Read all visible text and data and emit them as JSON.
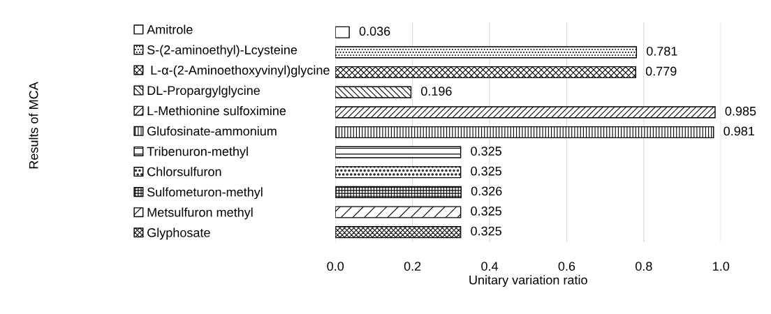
{
  "chart_data": {
    "type": "bar",
    "orientation": "horizontal",
    "xlabel": "Unitary variation ratio",
    "annotations": [
      "Results of MCA"
    ],
    "categories": [
      null,
      null,
      null,
      null,
      null,
      null,
      null,
      null,
      null,
      null,
      null
    ],
    "series": [
      {
        "name": "Amitrole",
        "color": "#000000",
        "values": [
          0.036,
          null,
          null,
          null,
          null,
          null,
          null,
          null,
          null,
          null,
          null
        ]
      },
      {
        "name": "S-(2-aminoethyl)-Lcysteine",
        "color": "#000000",
        "values": [
          null,
          0.781,
          null,
          null,
          null,
          null,
          null,
          null,
          null,
          null,
          null
        ]
      },
      {
        "name": " L-α-(2-Aminoethoxyvinyl)glycine",
        "color": "#000000",
        "values": [
          null,
          null,
          0.779,
          null,
          null,
          null,
          null,
          null,
          null,
          null,
          null
        ]
      },
      {
        "name": "DL-Propargylglycine",
        "color": "#000000",
        "values": [
          null,
          null,
          null,
          0.196,
          null,
          null,
          null,
          null,
          null,
          null,
          null
        ]
      },
      {
        "name": "L-Methionine sulfoximine",
        "color": "#000000",
        "values": [
          null,
          null,
          null,
          null,
          0.985,
          null,
          null,
          null,
          null,
          null,
          null
        ]
      },
      {
        "name": "Glufosinate-ammonium",
        "color": "#000000",
        "values": [
          null,
          null,
          null,
          null,
          null,
          0.981,
          null,
          null,
          null,
          null,
          null
        ]
      },
      {
        "name": "Tribenuron-methyl",
        "color": "#000000",
        "values": [
          null,
          null,
          null,
          null,
          null,
          null,
          0.325,
          null,
          null,
          null,
          null
        ]
      },
      {
        "name": "Chlorsulfuron",
        "color": "#000000",
        "values": [
          null,
          null,
          null,
          null,
          null,
          null,
          null,
          0.325,
          null,
          null,
          null
        ]
      },
      {
        "name": "Sulfometuron-methyl",
        "color": "#000000",
        "values": [
          null,
          null,
          null,
          null,
          null,
          null,
          null,
          null,
          0.326,
          null,
          null
        ]
      },
      {
        "name": "Metsulfuron methyl",
        "color": "#000000",
        "values": [
          null,
          null,
          null,
          null,
          null,
          null,
          null,
          null,
          null,
          0.325,
          null
        ]
      },
      {
        "name": "Glyphosate",
        "color": "#000000",
        "values": [
          null,
          null,
          null,
          null,
          null,
          null,
          null,
          null,
          null,
          null,
          0.325
        ]
      }
    ],
    "xlim": [
      0,
      1.0
    ],
    "xticks": [
      {
        "value": 0,
        "label": "0.0"
      },
      {
        "value": 0.2,
        "label": "0.2"
      },
      {
        "value": 0.4,
        "label": "0.4"
      },
      {
        "value": 0.6,
        "label": "0.6"
      },
      {
        "value": 0.8,
        "label": "0.8"
      },
      {
        "value": 1.0,
        "label": "1.0"
      }
    ],
    "grid": "x",
    "legend": "left",
    "data_labels": true
  }
}
